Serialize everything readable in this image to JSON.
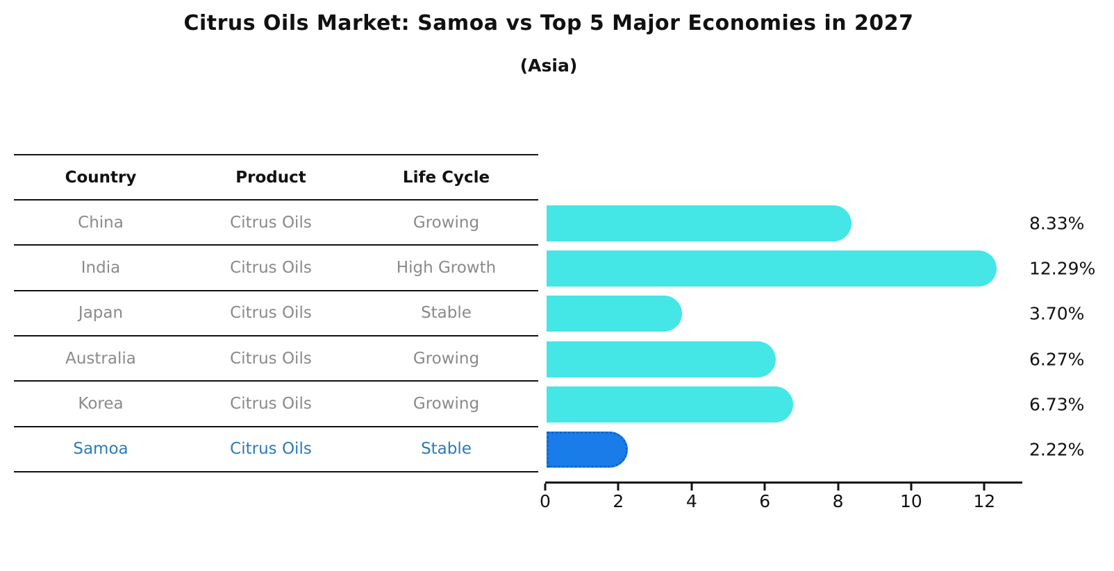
{
  "title": "Citrus Oils Market: Samoa vs Top 5 Major Economies in 2027",
  "subtitle": "(Asia)",
  "table": {
    "headers": [
      "Country",
      "Product",
      "Life Cycle"
    ],
    "rows": [
      {
        "country": "China",
        "product": "Citrus Oils",
        "life_cycle": "Growing",
        "highlight": false
      },
      {
        "country": "India",
        "product": "Citrus Oils",
        "life_cycle": "High Growth",
        "highlight": false
      },
      {
        "country": "Japan",
        "product": "Citrus Oils",
        "life_cycle": "Stable",
        "highlight": false
      },
      {
        "country": "Australia",
        "product": "Citrus Oils",
        "life_cycle": "Growing",
        "highlight": false
      },
      {
        "country": "Korea",
        "product": "Citrus Oils",
        "life_cycle": "Growing",
        "highlight": false
      },
      {
        "country": "Samoa",
        "product": "Citrus Oils",
        "life_cycle": "Stable",
        "highlight": true
      }
    ]
  },
  "chart_data": {
    "type": "bar",
    "orientation": "horizontal",
    "title": "Citrus Oils Market: Samoa vs Top 5 Major Economies in 2027",
    "subtitle": "(Asia)",
    "categories": [
      "China",
      "India",
      "Japan",
      "Australia",
      "Korea",
      "Samoa"
    ],
    "values": [
      8.33,
      12.29,
      3.7,
      6.27,
      6.73,
      2.22
    ],
    "value_labels": [
      "8.33%",
      "12.29%",
      "3.70%",
      "6.27%",
      "6.73%",
      "2.22%"
    ],
    "highlight_category": "Samoa",
    "xlabel": "",
    "ylabel": "",
    "xlim": [
      0,
      13
    ],
    "x_ticks": [
      0,
      2,
      4,
      6,
      8,
      10,
      12
    ],
    "grid": false,
    "legend": false,
    "colors": {
      "bar_default": "#45e6e6",
      "bar_highlight": "#1a7ce8",
      "bar_highlight_border": "#0e63cf",
      "highlight_text": "#2b7bb9",
      "table_text": "#8a8a8a",
      "header_text": "#111111",
      "axis": "#111111"
    }
  }
}
